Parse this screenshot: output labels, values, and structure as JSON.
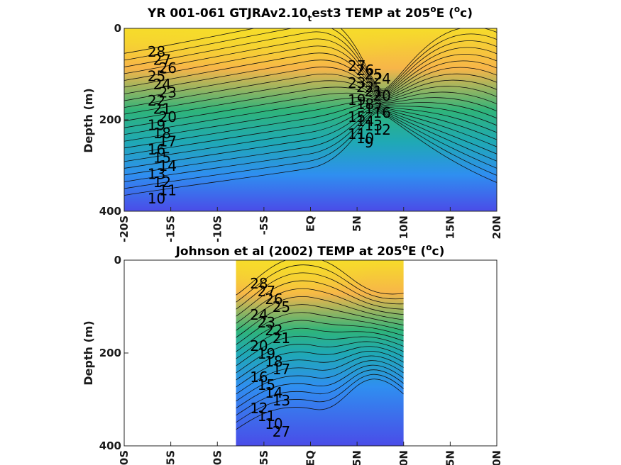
{
  "colors": {
    "warm": "#f6dc2a",
    "orange": "#f7b549",
    "green": "#2fb47a",
    "teal": "#1fa9b4",
    "blue": "#2f8ff0",
    "deep": "#4a4ce8",
    "contour": "#111111"
  },
  "chart_data": [
    {
      "type": "heatmap",
      "title_main": "YR 001-061 GTJRAv2.10",
      "title_sub": "t",
      "title_rest": "est3 TEMP at 205",
      "title_degsup": "o",
      "title_unit_pre": "E (",
      "title_unit_sup": "o",
      "title_unit_post": "c)",
      "ylabel": "Depth (m)",
      "xlabel": "",
      "ylim": [
        400,
        0
      ],
      "xlim": [
        -20,
        20
      ],
      "x_ticks": [
        "-20S",
        "-15S",
        "-10S",
        "-5S",
        "EQ",
        "5N",
        "10N",
        "15N",
        "20N"
      ],
      "y_ticks": [
        "0",
        "200",
        "400"
      ],
      "data_x_range": [
        -20,
        20
      ],
      "contour_labels": [
        "28",
        "27",
        "26",
        "25",
        "24",
        "23",
        "22",
        "21",
        "20",
        "19",
        "18",
        "17",
        "16",
        "15",
        "14",
        "13",
        "12",
        "11",
        "10",
        "27",
        "26",
        "25",
        "24",
        "23",
        "22",
        "21",
        "20",
        "19",
        "18",
        "17",
        "16",
        "15",
        "14",
        "13",
        "12",
        "11",
        "10",
        "9"
      ]
    },
    {
      "type": "heatmap",
      "title_main": "Johnson et al (2002) TEMP at 205",
      "title_degsup": "o",
      "title_unit_pre": "E (",
      "title_unit_sup": "o",
      "title_unit_post": "c)",
      "ylabel": "Depth (m)",
      "xlabel": "",
      "ylim": [
        400,
        0
      ],
      "xlim": [
        -20,
        20
      ],
      "x_ticks": [
        "-20S",
        "-15S",
        "-10S",
        "-5S",
        "EQ",
        "5N",
        "10N",
        "15N",
        "20N"
      ],
      "y_ticks": [
        "0",
        "200",
        "400"
      ],
      "data_x_range": [
        -8,
        10
      ],
      "contour_labels": [
        "28",
        "27",
        "26",
        "25",
        "24",
        "23",
        "22",
        "21",
        "20",
        "19",
        "18",
        "17",
        "16",
        "15",
        "14",
        "13",
        "12",
        "11",
        "10",
        "27"
      ]
    }
  ]
}
